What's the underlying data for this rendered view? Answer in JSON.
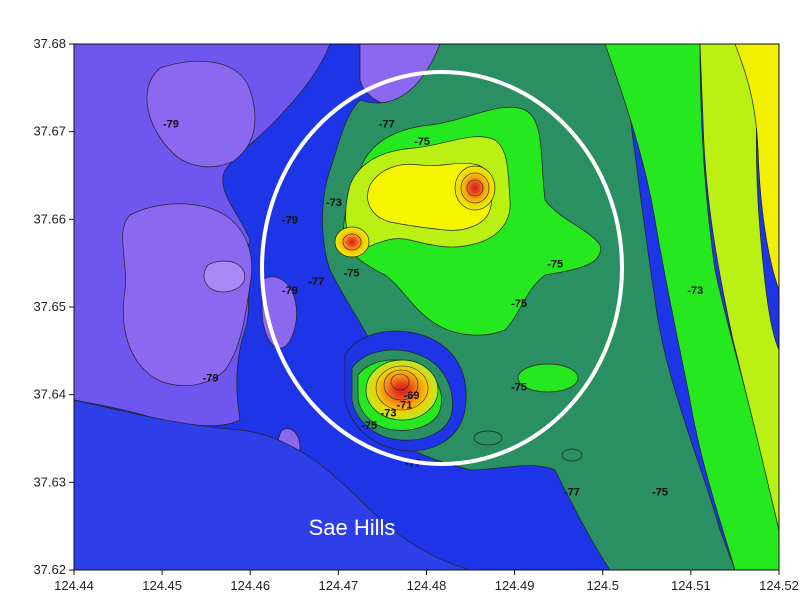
{
  "chart_data": {
    "type": "contour-map",
    "title": "",
    "xlabel": "",
    "ylabel": "",
    "xlim": [
      124.44,
      124.52
    ],
    "ylim": [
      37.62,
      37.68
    ],
    "x_ticks": [
      "124.44",
      "124.45",
      "124.46",
      "124.47",
      "124.48",
      "124.49",
      "124.5",
      "124.51",
      "124.52"
    ],
    "y_ticks": [
      "37.62",
      "37.63",
      "37.64",
      "37.65",
      "37.66",
      "37.67",
      "37.68"
    ],
    "contour_labels": [
      {
        "text": "-79",
        "x": 124.451,
        "y": 37.6705
      },
      {
        "text": "-77",
        "x": 124.4755,
        "y": 37.6705
      },
      {
        "text": "-75",
        "x": 124.4795,
        "y": 37.6685
      },
      {
        "text": "-73",
        "x": 124.4695,
        "y": 37.6615
      },
      {
        "text": "-79",
        "x": 124.4645,
        "y": 37.6595
      },
      {
        "text": "-75",
        "x": 124.4715,
        "y": 37.6535
      },
      {
        "text": "-77",
        "x": 124.4675,
        "y": 37.6525
      },
      {
        "text": "-79",
        "x": 124.4645,
        "y": 37.6515
      },
      {
        "text": "-75",
        "x": 124.4946,
        "y": 37.6545
      },
      {
        "text": "-75",
        "x": 124.4905,
        "y": 37.65
      },
      {
        "text": "-73",
        "x": 124.5105,
        "y": 37.6515
      },
      {
        "text": "-79",
        "x": 124.4555,
        "y": 37.6415
      },
      {
        "text": "-75",
        "x": 124.4905,
        "y": 37.6405
      },
      {
        "text": "-69",
        "x": 124.4783,
        "y": 37.6395
      },
      {
        "text": "-71",
        "x": 124.4775,
        "y": 37.6384
      },
      {
        "text": "-73",
        "x": 124.4757,
        "y": 37.6375
      },
      {
        "text": "-75",
        "x": 124.4735,
        "y": 37.6361
      },
      {
        "text": "-77",
        "x": 124.4785,
        "y": 37.6318
      },
      {
        "text": "-77",
        "x": 124.4965,
        "y": 37.6285
      },
      {
        "text": "-75",
        "x": 124.5065,
        "y": 37.6285
      }
    ],
    "legend": "none",
    "grid": false
  },
  "annotations": {
    "place_label": "Sae Hills",
    "circle_color": "#ffffff"
  },
  "colors": {
    "level_-79": "#8c67f0",
    "level_-77": "#1d35e6",
    "level_-75": "#2a8f62",
    "level_-73": "#25e81e",
    "level_-71": "#bbf014",
    "level_-69": "#f5f500",
    "peak": "#e8311a"
  }
}
